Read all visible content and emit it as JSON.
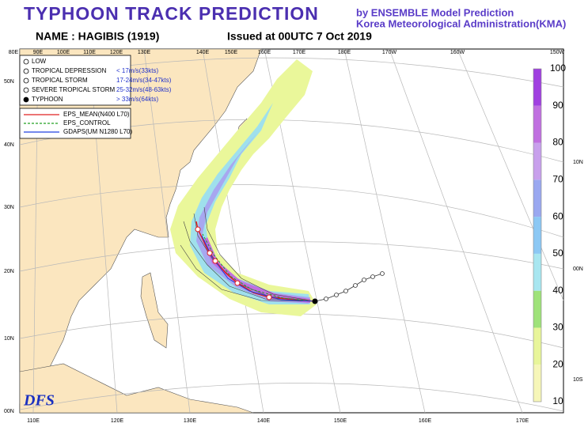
{
  "header": {
    "title": "TYPHOON TRACK PREDICTION",
    "org_line1": "by ENSEMBLE Model Prediction",
    "org_line2": "Korea Meteorological Administration(KMA)",
    "name": "NAME : HAGIBIS (1919)",
    "issued": "Issued at 00UTC 7 Oct 2019"
  },
  "map": {
    "lon_top": [
      "80E",
      "90E",
      "100E",
      "110E",
      "120E",
      "130E",
      "140E",
      "150E",
      "160E",
      "170E",
      "180E",
      "170W",
      "160W",
      "150W"
    ],
    "lon_bottom": [
      "110E",
      "120E",
      "130E",
      "140E",
      "150E",
      "160E",
      "170E"
    ],
    "lat_left": [
      "50N",
      "40N",
      "30N",
      "20N",
      "10N",
      "00N"
    ],
    "lat_right": [
      "10N",
      "00N",
      "10S"
    ]
  },
  "legend": {
    "categories": [
      {
        "label": "LOW"
      },
      {
        "label": "TROPICAL DEPRESSION",
        "speed": "< 17m/s(33kts)"
      },
      {
        "label": "TROPICAL STORM",
        "speed": "17-24m/s(34-47kts)"
      },
      {
        "label": "SEVERE TROPICAL STORM",
        "speed": "25-32m/s(48-63kts)"
      },
      {
        "label": "TYPHOON",
        "speed": "> 33m/s(64kts)"
      }
    ],
    "models": [
      "EPS_MEAN(N400 L70)",
      "EPS_CONTROL",
      "GDAPS(UM N1280 L70)"
    ]
  },
  "colorbar": {
    "ticks": [
      10,
      20,
      30,
      40,
      50,
      60,
      70,
      80,
      90,
      100
    ]
  },
  "logo": "DFS"
}
